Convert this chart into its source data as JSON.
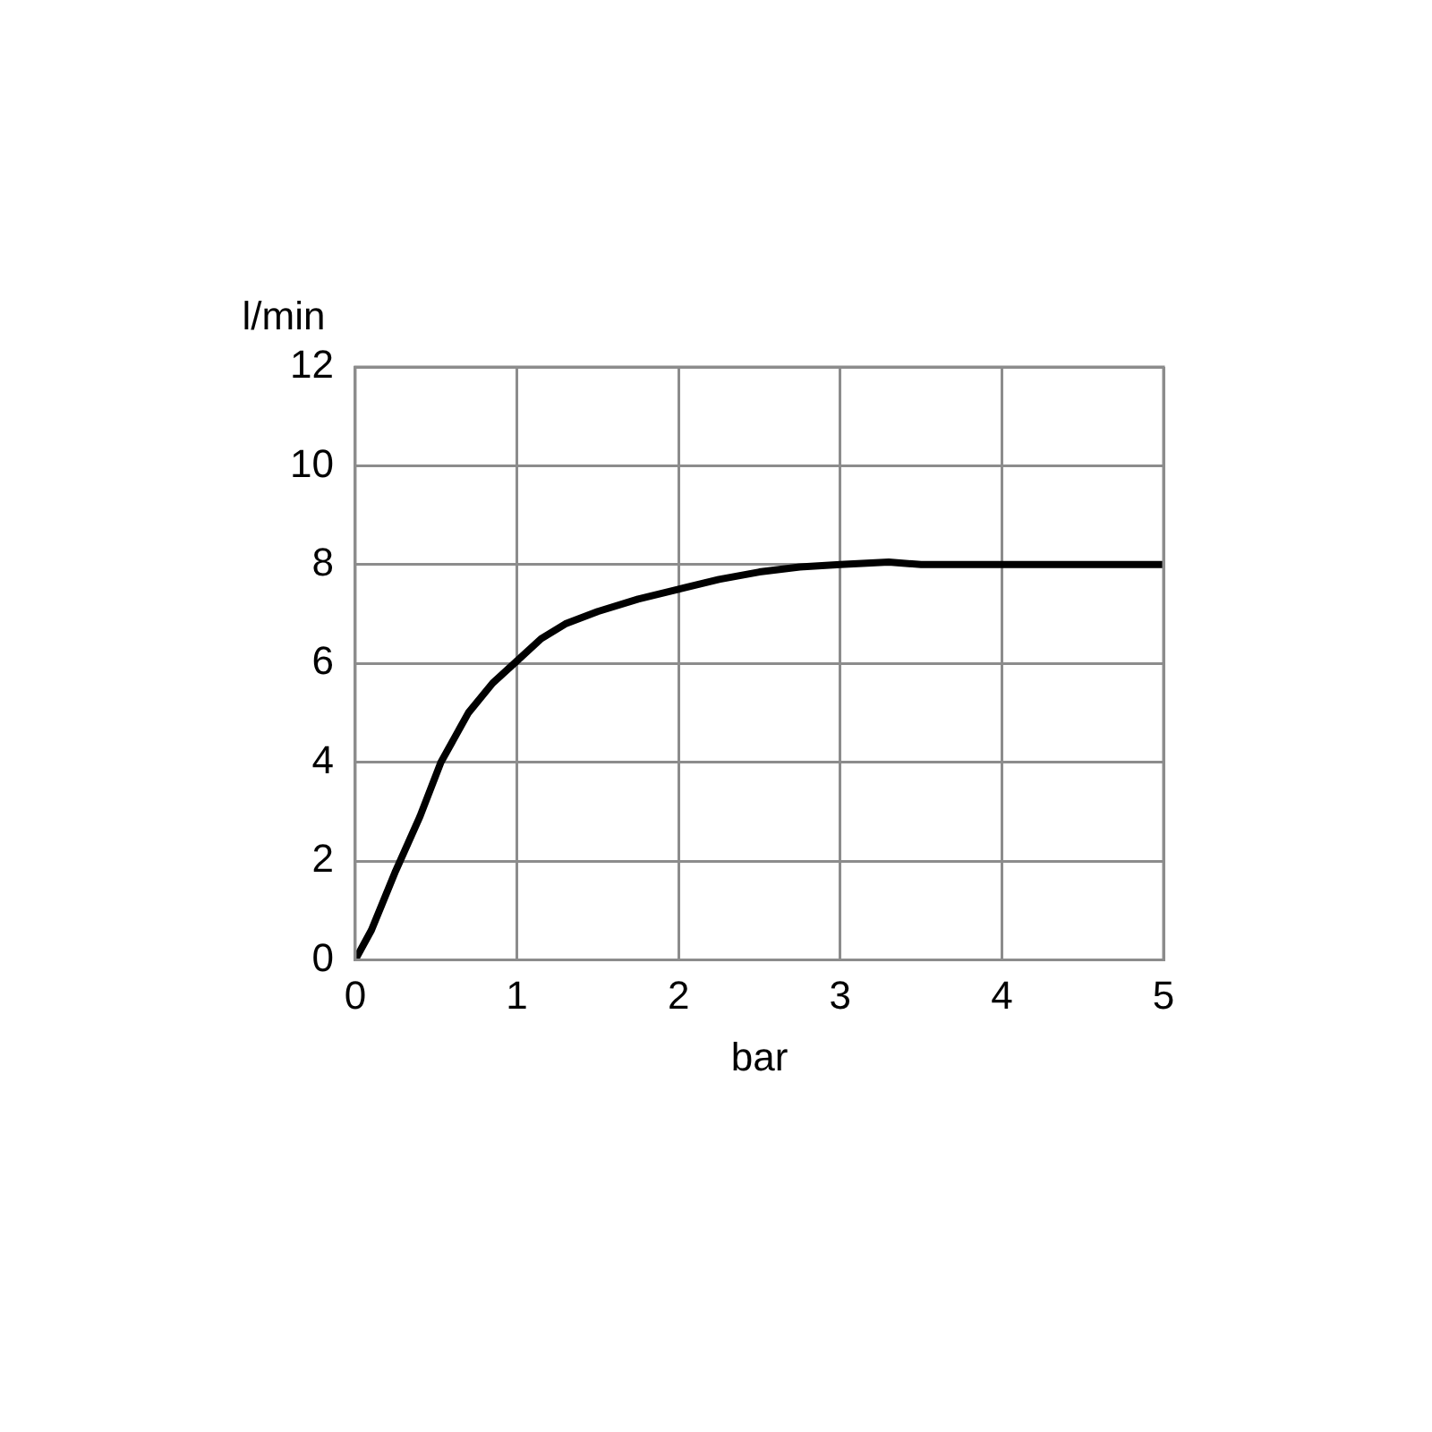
{
  "chart_data": {
    "type": "line",
    "xlabel": "bar",
    "ylabel": "l/min",
    "x": [
      0,
      0.1,
      0.25,
      0.4,
      0.53,
      0.7,
      0.85,
      1,
      1.15,
      1.3,
      1.5,
      1.75,
      2,
      2.25,
      2.5,
      2.75,
      3,
      3.3,
      3.5,
      4,
      4.5,
      5
    ],
    "series": [
      {
        "color": "#000000",
        "values": [
          0,
          0.6,
          1.8,
          2.9,
          4,
          5,
          5.6,
          6.05,
          6.5,
          6.8,
          7.05,
          7.3,
          7.5,
          7.7,
          7.85,
          7.95,
          8,
          8.05,
          8,
          8,
          8,
          8
        ]
      }
    ],
    "xlim": [
      0,
      5
    ],
    "xticks": [
      0,
      1,
      2,
      3,
      4,
      5
    ],
    "ylim": [
      0,
      12
    ],
    "yticks": [
      0,
      2,
      4,
      6,
      8,
      10,
      12
    ],
    "grid": true,
    "legend": false,
    "marker": "none",
    "line_style": "solid"
  }
}
